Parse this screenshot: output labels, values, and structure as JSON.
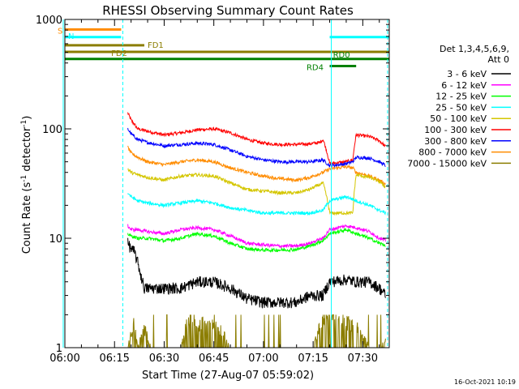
{
  "footer_timestamp": "16-Oct-2021 10:19",
  "chart_data": {
    "type": "line",
    "title": "RHESSI Observing Summary Count Rates",
    "xlabel": "Start Time (27-Aug-07 05:59:02)",
    "ylabel_parts": [
      "Count Rate (s",
      "-1",
      " detector",
      "-1",
      ")"
    ],
    "yscale": "log",
    "ylim": [
      1,
      1000
    ],
    "xlim_minutes": [
      0,
      98
    ],
    "x_ticks": [
      {
        "label": "06:00",
        "min": 0
      },
      {
        "label": "06:15",
        "min": 15
      },
      {
        "label": "06:30",
        "min": 30
      },
      {
        "label": "06:45",
        "min": 45
      },
      {
        "label": "07:00",
        "min": 60
      },
      {
        "label": "07:15",
        "min": 75
      },
      {
        "label": "07:30",
        "min": 90
      }
    ],
    "y_ticks": [
      {
        "label": "1",
        "value": 1
      },
      {
        "label": "10",
        "value": 10
      },
      {
        "label": "100",
        "value": 100
      },
      {
        "label": "1000",
        "value": 1000
      }
    ],
    "legend": {
      "header": [
        "Det 1,3,4,5,6,9,",
        "Att 0"
      ],
      "position": "right",
      "entries": [
        {
          "label": "3 - 6 keV",
          "color": "#000000"
        },
        {
          "label": "6 - 12 keV",
          "color": "#ff00ff"
        },
        {
          "label": "12 - 25 keV",
          "color": "#00ff00"
        },
        {
          "label": "25 - 50 keV",
          "color": "#00ffff"
        },
        {
          "label": "50 - 100 keV",
          "color": "#d4c600"
        },
        {
          "label": "100 - 300 keV",
          "color": "#ff0000"
        },
        {
          "label": "300 - 800 keV",
          "color": "#0000ff"
        },
        {
          "label": "800 - 7000 keV",
          "color": "#ff8c00"
        },
        {
          "label": "7000 - 15000 keV",
          "color": "#8b7d00"
        }
      ]
    },
    "flags": [
      {
        "label": "S",
        "color": "#ff8c00",
        "value": 810,
        "start": 0,
        "end": 17
      },
      {
        "label": "N",
        "color": "#00ffff",
        "value": 690,
        "start": 0,
        "end": 17
      },
      {
        "label": "N",
        "color": "#00ffff",
        "value": 690,
        "start": 80,
        "end": 98
      },
      {
        "label": "FD1",
        "color": "#8b7d00",
        "value": 580,
        "start": 0,
        "end": 24
      },
      {
        "label": "FD2",
        "color": "#8b7d00",
        "value": 505,
        "start": 0,
        "end": 98
      },
      {
        "label": "RD0",
        "color": "#008000",
        "value": 435,
        "start": 0,
        "end": 98
      },
      {
        "label": "RD4",
        "color": "#008000",
        "value": 375,
        "start": 80,
        "end": 88
      }
    ],
    "vlines": [
      {
        "x": -0.5,
        "color": "#00ffff",
        "style": "solid"
      },
      {
        "x": 17.5,
        "color": "#00ffff",
        "style": "dashed"
      },
      {
        "x": 80.5,
        "color": "#00ffff",
        "style": "solid"
      },
      {
        "x": 97.5,
        "color": "#00ffff",
        "style": "dashed"
      }
    ],
    "series": [
      {
        "name": "100 - 300 keV",
        "color": "#ff0000",
        "x": [
          19,
          20,
          22,
          25,
          30,
          35,
          40,
          45,
          50,
          55,
          60,
          65,
          70,
          74,
          77,
          78,
          80,
          85,
          87,
          88,
          92,
          95,
          97
        ],
        "y": [
          140,
          120,
          100,
          95,
          88,
          92,
          98,
          100,
          92,
          80,
          74,
          72,
          72,
          73,
          75,
          80,
          48,
          50,
          52,
          88,
          85,
          78,
          68
        ]
      },
      {
        "name": "300 - 800 keV",
        "color": "#0000ff",
        "x": [
          19,
          20,
          22,
          25,
          30,
          35,
          40,
          45,
          50,
          55,
          60,
          65,
          70,
          74,
          78,
          80,
          85,
          87,
          88,
          92,
          95,
          97
        ],
        "y": [
          100,
          90,
          80,
          75,
          70,
          72,
          74,
          72,
          64,
          56,
          52,
          50,
          50,
          50,
          52,
          46,
          48,
          50,
          55,
          54,
          50,
          46
        ]
      },
      {
        "name": "800 - 7000 keV",
        "color": "#ff8c00",
        "x": [
          19,
          20,
          22,
          25,
          30,
          35,
          40,
          45,
          50,
          55,
          60,
          65,
          70,
          74,
          78,
          80,
          85,
          87,
          88,
          92,
          95,
          97
        ],
        "y": [
          68,
          60,
          55,
          50,
          47,
          50,
          52,
          50,
          44,
          40,
          37,
          35,
          34,
          36,
          40,
          43,
          45,
          44,
          40,
          37,
          34,
          31
        ]
      },
      {
        "name": "50 - 100 keV",
        "color": "#d4c600",
        "x": [
          19,
          20,
          22,
          25,
          30,
          35,
          40,
          45,
          50,
          55,
          60,
          65,
          70,
          74,
          78,
          80,
          85,
          87,
          88,
          92,
          95,
          97
        ],
        "y": [
          43,
          40,
          38,
          36,
          34,
          37,
          38,
          37,
          32,
          28,
          27,
          26,
          26,
          28,
          32,
          17,
          17,
          17,
          38,
          36,
          33,
          29
        ]
      },
      {
        "name": "25 - 50 keV",
        "color": "#00ffff",
        "x": [
          19,
          20,
          22,
          25,
          30,
          35,
          40,
          45,
          50,
          55,
          60,
          65,
          70,
          74,
          78,
          80,
          85,
          88,
          92,
          95,
          97
        ],
        "y": [
          26,
          24,
          22,
          21,
          20,
          21,
          22,
          21,
          19,
          18,
          17,
          17,
          17,
          17,
          18,
          22,
          24,
          22,
          20,
          18,
          17
        ]
      },
      {
        "name": "6 - 12 keV",
        "color": "#ff00ff",
        "x": [
          19,
          20,
          22,
          25,
          30,
          35,
          40,
          45,
          50,
          55,
          60,
          65,
          70,
          74,
          78,
          80,
          85,
          88,
          92,
          95,
          97
        ],
        "y": [
          13,
          12,
          12,
          11.5,
          11,
          12,
          12.5,
          12,
          10.5,
          9,
          8.7,
          8.5,
          8.5,
          9,
          10,
          12,
          13,
          12.5,
          11.5,
          10,
          9.5
        ]
      },
      {
        "name": "12 - 25 keV",
        "color": "#00ff00",
        "x": [
          19,
          20,
          22,
          25,
          30,
          35,
          40,
          45,
          50,
          55,
          60,
          65,
          70,
          74,
          78,
          80,
          85,
          88,
          92,
          95,
          97
        ],
        "y": [
          11,
          10.5,
          10,
          10,
          9.5,
          10,
          11,
          10.5,
          9,
          8,
          7.8,
          7.8,
          7.9,
          8.5,
          9.5,
          11,
          12,
          11,
          10,
          9,
          8.6
        ]
      },
      {
        "name": "3 - 6 keV",
        "color": "#000000",
        "x": [
          19,
          20,
          21,
          22,
          23,
          24,
          26,
          30,
          35,
          40,
          45,
          50,
          55,
          60,
          65,
          70,
          74,
          78,
          80,
          85,
          88,
          92,
          95,
          97
        ],
        "y": [
          9,
          8,
          7.5,
          6,
          4.5,
          3.5,
          3.5,
          3.5,
          3.5,
          4,
          4,
          3.5,
          2.8,
          2.6,
          2.6,
          2.6,
          3,
          3,
          4,
          4.2,
          4,
          4,
          3.5,
          3
        ]
      },
      {
        "name": "7000 - 15000 keV",
        "color": "#8b7d00",
        "x": [
          19,
          21,
          22,
          24,
          26,
          30,
          35,
          38,
          40,
          45,
          50,
          55,
          60,
          65,
          70,
          75,
          78,
          80,
          85,
          88,
          92,
          95,
          97
        ],
        "y": [
          1,
          1.7,
          1,
          1.5,
          1,
          1,
          1,
          2,
          1.6,
          1.8,
          1,
          1,
          1,
          1,
          1,
          1,
          1.8,
          2,
          1.7,
          1.6,
          1,
          1,
          1.2
        ]
      }
    ]
  }
}
